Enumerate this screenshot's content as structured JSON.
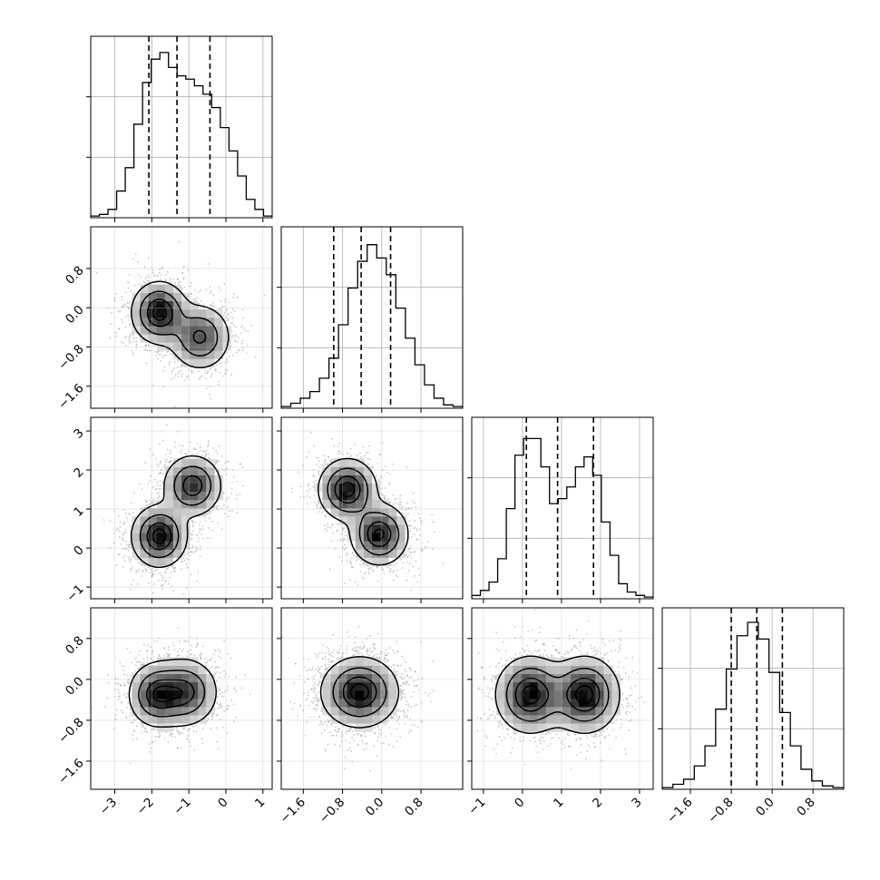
{
  "chart_data": {
    "type": "corner",
    "parameters": [
      {
        "range": [
          -3.65,
          1.25
        ],
        "ticks": [
          -3,
          -2,
          -1,
          0,
          1
        ],
        "tick_labels": [
          "−3",
          "−2",
          "−1",
          "0",
          "1"
        ],
        "quantiles": [
          -2.08,
          -1.32,
          -0.43
        ],
        "hist": [
          0.01,
          0.02,
          0.05,
          0.16,
          0.3,
          0.56,
          0.81,
          0.95,
          0.99,
          0.9,
          0.85,
          0.83,
          0.79,
          0.74,
          0.66,
          0.54,
          0.4,
          0.25,
          0.11,
          0.05,
          0.01
        ]
      },
      {
        "range": [
          -2.05,
          1.65
        ],
        "ticks": [
          -1.6,
          -0.8,
          0.0,
          0.8
        ],
        "tick_labels": [
          "−1.6",
          "−0.8",
          "0.0",
          "0.8"
        ],
        "quantiles": [
          -0.98,
          -0.42,
          0.18
        ],
        "hist": [
          0.01,
          0.03,
          0.06,
          0.1,
          0.18,
          0.3,
          0.5,
          0.72,
          0.88,
          0.98,
          0.9,
          0.8,
          0.6,
          0.42,
          0.26,
          0.14,
          0.06,
          0.02,
          0.01
        ]
      },
      {
        "range": [
          -1.3,
          3.35
        ],
        "ticks": [
          -1,
          0,
          1,
          2,
          3
        ],
        "tick_labels": [
          "−1",
          "0",
          "1",
          "2",
          "3"
        ],
        "quantiles": [
          0.1,
          0.9,
          1.82
        ],
        "hist": [
          0.02,
          0.05,
          0.1,
          0.24,
          0.54,
          0.86,
          0.96,
          0.96,
          0.79,
          0.57,
          0.6,
          0.67,
          0.79,
          0.85,
          0.74,
          0.46,
          0.26,
          0.09,
          0.04,
          0.02,
          0.01
        ]
      },
      {
        "range": [
          -2.15,
          1.4
        ],
        "ticks": [
          -1.6,
          -0.8,
          0.0,
          0.8
        ],
        "tick_labels": [
          "−1.6",
          "−0.8",
          "0.0",
          "0.8"
        ],
        "quantiles": [
          -0.8,
          -0.3,
          0.2
        ],
        "hist": [
          0.01,
          0.03,
          0.06,
          0.14,
          0.26,
          0.48,
          0.72,
          0.92,
          1.0,
          0.9,
          0.7,
          0.46,
          0.26,
          0.12,
          0.05,
          0.02,
          0.01
        ]
      }
    ],
    "pairs": [
      {
        "row": 1,
        "col": 0,
        "modes": [
          {
            "mx": -1.8,
            "my": -0.1,
            "sx": 0.38,
            "sy": 0.32,
            "w": 1.0
          },
          {
            "mx": -0.7,
            "my": -0.6,
            "sx": 0.42,
            "sy": 0.34,
            "w": 0.75
          }
        ]
      },
      {
        "row": 2,
        "col": 0,
        "modes": [
          {
            "mx": -1.8,
            "my": 0.3,
            "sx": 0.38,
            "sy": 0.4,
            "w": 1.0
          },
          {
            "mx": -0.9,
            "my": 1.6,
            "sx": 0.4,
            "sy": 0.4,
            "w": 0.85
          }
        ]
      },
      {
        "row": 2,
        "col": 1,
        "modes": [
          {
            "mx": -0.7,
            "my": 1.5,
            "sx": 0.3,
            "sy": 0.4,
            "w": 1.0
          },
          {
            "mx": -0.05,
            "my": 0.35,
            "sx": 0.3,
            "sy": 0.4,
            "w": 0.95
          }
        ]
      },
      {
        "row": 3,
        "col": 0,
        "modes": [
          {
            "mx": -1.9,
            "my": -0.3,
            "sx": 0.38,
            "sy": 0.32,
            "w": 0.9
          },
          {
            "mx": -1.1,
            "my": -0.25,
            "sx": 0.45,
            "sy": 0.34,
            "w": 0.9
          }
        ]
      },
      {
        "row": 3,
        "col": 1,
        "modes": [
          {
            "mx": -0.45,
            "my": -0.25,
            "sx": 0.4,
            "sy": 0.35,
            "w": 1.0
          }
        ]
      },
      {
        "row": 3,
        "col": 2,
        "modes": [
          {
            "mx": 0.2,
            "my": -0.3,
            "sx": 0.45,
            "sy": 0.38,
            "w": 1.0
          },
          {
            "mx": 1.6,
            "my": -0.3,
            "sx": 0.45,
            "sy": 0.38,
            "w": 1.0
          }
        ]
      }
    ],
    "contour_levels": [
      0.14,
      0.4,
      0.7,
      0.9
    ],
    "grid": true,
    "quantile_line_style": "dashed"
  }
}
